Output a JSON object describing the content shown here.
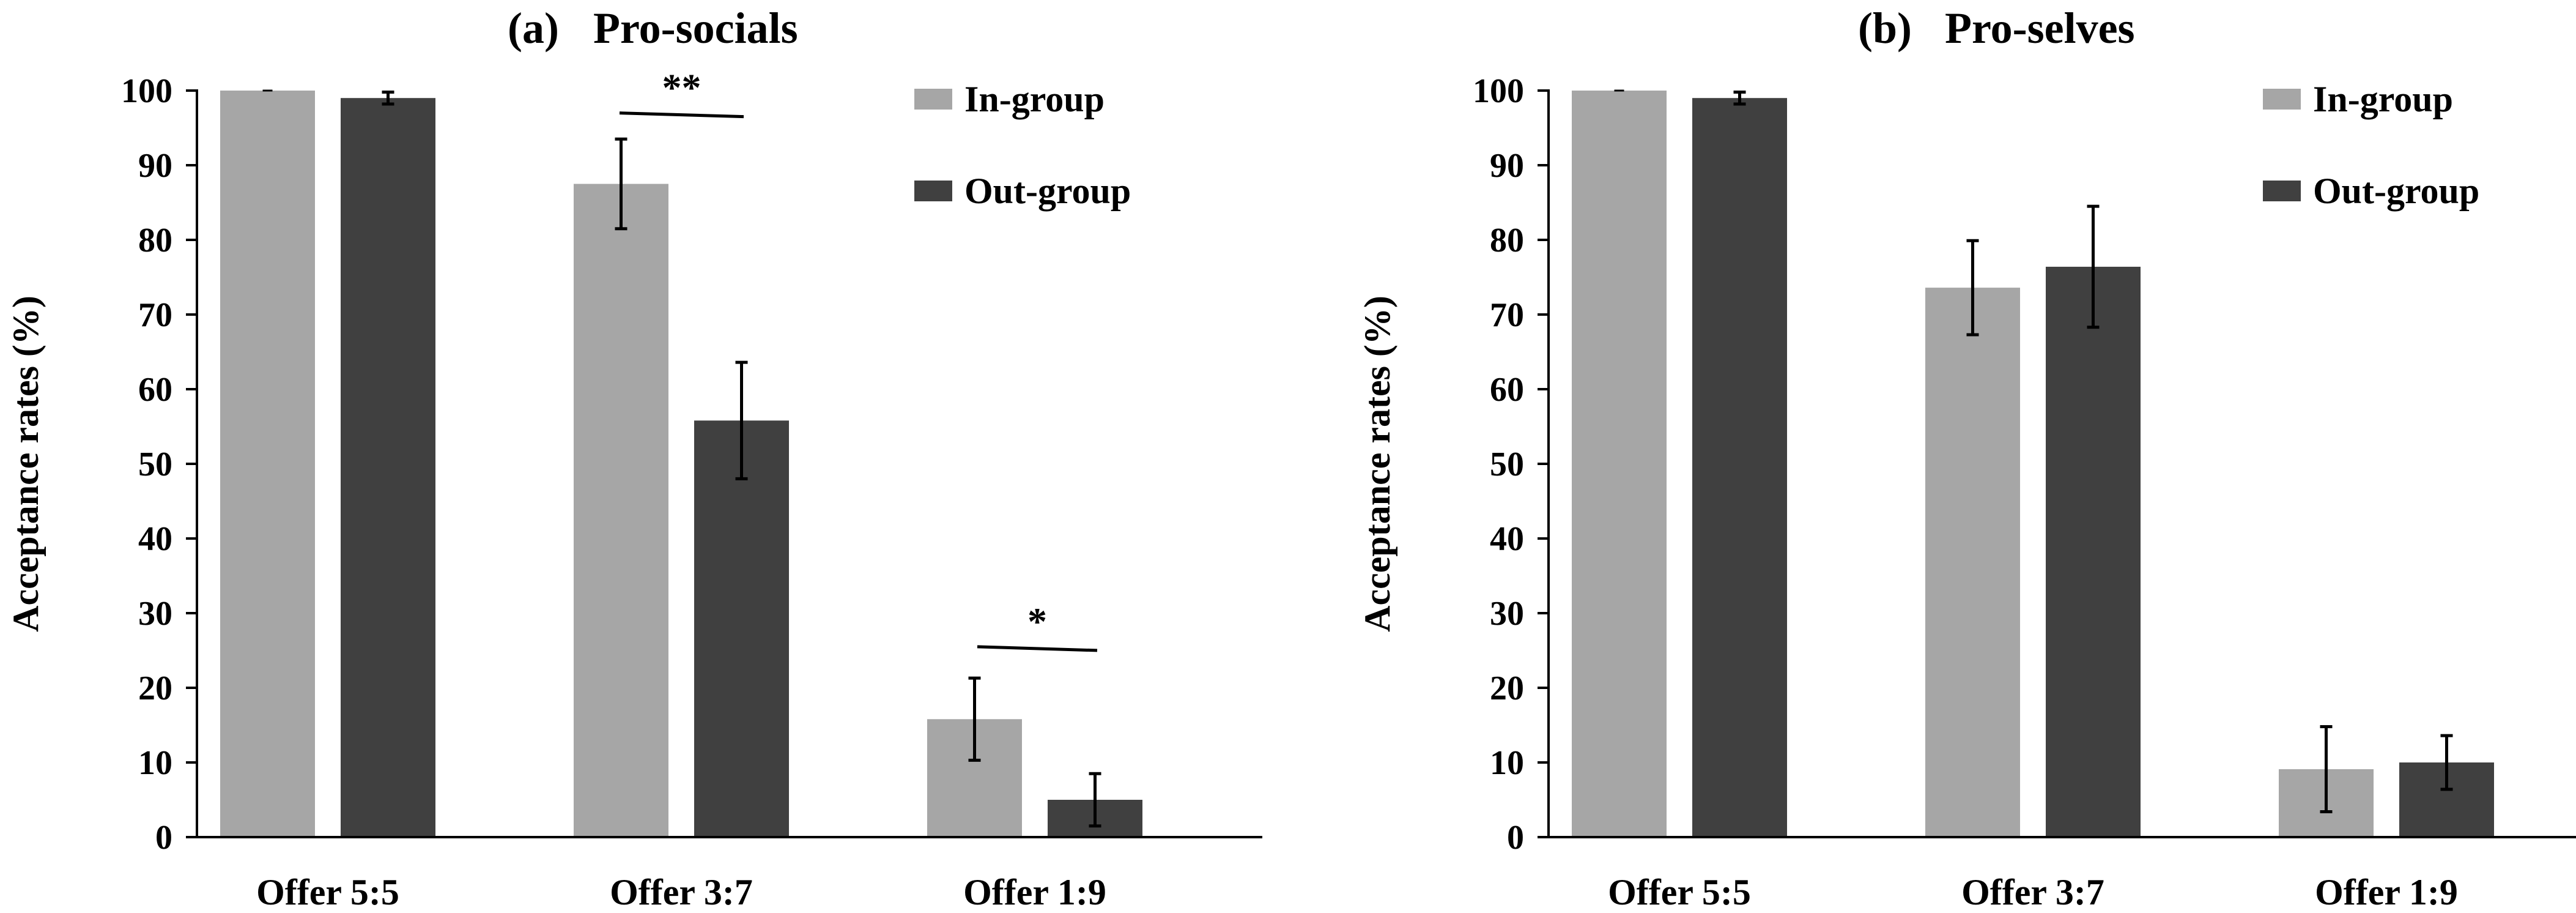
{
  "chart_data": [
    {
      "type": "bar",
      "panel": "(a)",
      "title": "Pro-socials",
      "xlabel": "",
      "ylabel": "Acceptance rates (%)",
      "ylim": [
        0,
        100
      ],
      "yticks": [
        "0",
        "10",
        "20",
        "30",
        "40",
        "50",
        "60",
        "70",
        "80",
        "90",
        "100"
      ],
      "categories": [
        "Offer 5:5",
        "Offer 3:7",
        "Offer 1:9"
      ],
      "legend_position": "top-right",
      "grid": false,
      "series": [
        {
          "name": "In-group",
          "color": "#a6a6a6",
          "values": [
            100,
            87.5,
            15.8
          ],
          "errors": [
            0,
            6,
            5.5
          ]
        },
        {
          "name": "Out-group",
          "color": "#404040",
          "values": [
            99,
            55.8,
            5
          ],
          "errors": [
            0.8,
            7.8,
            3.5
          ]
        }
      ],
      "annotations": [
        {
          "label": "**",
          "category": "Offer 3:7",
          "at_value": 97
        },
        {
          "label": "*",
          "category": "Offer 1:9",
          "at_value": 25.5
        }
      ]
    },
    {
      "type": "bar",
      "panel": "(b)",
      "title": "Pro-selves",
      "xlabel": "",
      "ylabel": "Acceptance rates (%)",
      "ylim": [
        0,
        100
      ],
      "yticks": [
        "0",
        "10",
        "20",
        "30",
        "40",
        "50",
        "60",
        "70",
        "80",
        "90",
        "100"
      ],
      "categories": [
        "Offer 5:5",
        "Offer 3:7",
        "Offer 1:9"
      ],
      "legend_position": "top-right",
      "grid": false,
      "series": [
        {
          "name": "In-group",
          "color": "#a6a6a6",
          "values": [
            100,
            73.6,
            9.1
          ],
          "errors": [
            0,
            6.3,
            5.7
          ]
        },
        {
          "name": "Out-group",
          "color": "#404040",
          "values": [
            99,
            76.4,
            10
          ],
          "errors": [
            0.8,
            8.1,
            3.6
          ]
        }
      ],
      "annotations": []
    }
  ]
}
